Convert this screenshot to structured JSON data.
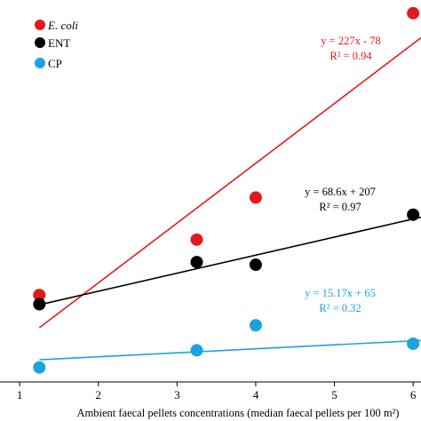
{
  "chart_data": {
    "type": "scatter",
    "xlabel": "Ambient faecal pellets concentrations (median faecal pellets per 100 m²)",
    "ylabel": "",
    "title": "",
    "xlim": [
      0.75,
      6.1
    ],
    "ylim": [
      0,
      1450
    ],
    "xticks": [
      "1",
      "2",
      "3",
      "4",
      "5",
      "6"
    ],
    "legend_position": "top-left",
    "grid": false,
    "series": [
      {
        "name": "E. coli",
        "color": "#e31a1c",
        "x": [
          1.25,
          3.25,
          4.0,
          6.0
        ],
        "y": [
          330,
          540,
          700,
          1400
        ],
        "fit": {
          "slope": 227,
          "intercept": -78,
          "equation": "y = 227x - 78",
          "r2": "R² = 0.94"
        }
      },
      {
        "name": "ENT",
        "color": "#000000",
        "x": [
          1.25,
          3.25,
          4.0,
          6.0
        ],
        "y": [
          295,
          455,
          445,
          635
        ],
        "fit": {
          "slope": 68.6,
          "intercept": 207,
          "equation": "y = 68.6x + 207",
          "r2": "R² = 0.97"
        }
      },
      {
        "name": "CP",
        "color": "#1aa3e0",
        "x": [
          1.25,
          3.25,
          4.0,
          6.0
        ],
        "y": [
          55,
          120,
          215,
          145
        ],
        "fit": {
          "slope": 15.17,
          "intercept": 65,
          "equation": "y = 15.17x + 65",
          "r2": "R² = 0.32"
        }
      }
    ]
  }
}
